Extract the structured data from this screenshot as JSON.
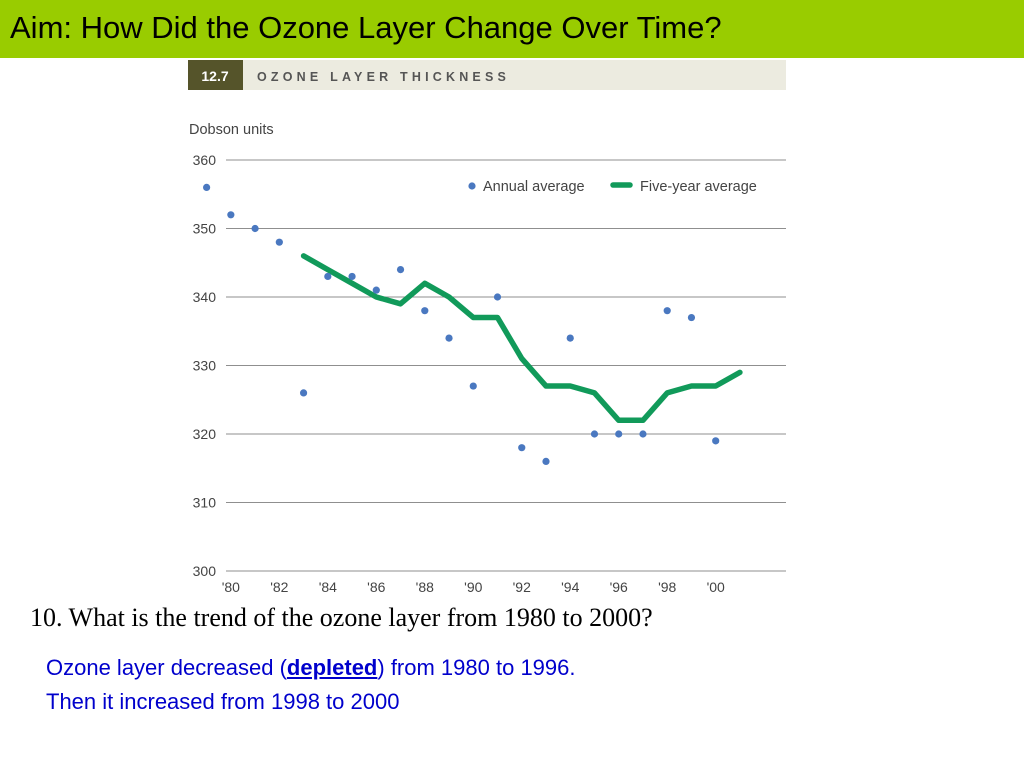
{
  "slide": {
    "title": "Aim: How Did the Ozone Layer Change Over Time?",
    "question": "10. What is the trend of the ozone layer from 1980 to 2000?",
    "answer_line1_pre": "Ozone layer decreased (",
    "answer_line1_bold": "depleted",
    "answer_line1_post": ") from 1980 to 1996.",
    "answer_line2": "Then it increased from 1998 to 2000",
    "header_bar_color": "#99cc00",
    "answer_color": "#0000cc"
  },
  "chart_data": {
    "type": "scatter",
    "figure_number": "12.7",
    "title": "OZONE LAYER THICKNESS",
    "ylabel": "Dobson units",
    "xlabel": "",
    "ylim": [
      300,
      360
    ],
    "yticks": [
      "300",
      "310",
      "320",
      "330",
      "340",
      "350",
      "360"
    ],
    "xlim": [
      1979.8,
      2002.9
    ],
    "xticks": [
      {
        "year": 1980,
        "label": "'80"
      },
      {
        "year": 1982,
        "label": "'82"
      },
      {
        "year": 1984,
        "label": "'84"
      },
      {
        "year": 1986,
        "label": "'86"
      },
      {
        "year": 1988,
        "label": "'88"
      },
      {
        "year": 1990,
        "label": "'90"
      },
      {
        "year": 1992,
        "label": "'92"
      },
      {
        "year": 1994,
        "label": "'94"
      },
      {
        "year": 1996,
        "label": "'96"
      },
      {
        "year": 1998,
        "label": "'98"
      },
      {
        "year": 2000,
        "label": "'00"
      }
    ],
    "grid": true,
    "legend_position": "top-right",
    "series": [
      {
        "name": "Annual average",
        "kind": "points",
        "color": "#4a78c0",
        "x": [
          1979,
          1980,
          1981,
          1982,
          1983,
          1984,
          1985,
          1986,
          1987,
          1988,
          1989,
          1990,
          1991,
          1992,
          1993,
          1994,
          1995,
          1996,
          1997,
          1998,
          1999,
          2000
        ],
        "y": [
          356,
          352,
          350,
          348,
          326,
          343,
          343,
          341,
          344,
          338,
          334,
          327,
          340,
          318,
          316,
          334,
          320,
          320,
          320,
          338,
          337,
          319
        ]
      },
      {
        "name": "Five-year average",
        "kind": "line",
        "color": "#119a5a",
        "x": [
          1983,
          1984,
          1985,
          1986,
          1987,
          1988,
          1989,
          1990,
          1991,
          1992,
          1993,
          1994,
          1995,
          1996,
          1997,
          1998,
          1999,
          2000,
          2001
        ],
        "y": [
          346,
          344,
          342,
          340,
          339,
          342,
          340,
          337,
          337,
          331,
          327,
          327,
          326,
          322,
          322,
          326,
          327,
          327,
          329
        ]
      }
    ],
    "header_colors": {
      "number_box": "#55542a",
      "band": "#ecebe0",
      "title_text": "#555555"
    }
  }
}
